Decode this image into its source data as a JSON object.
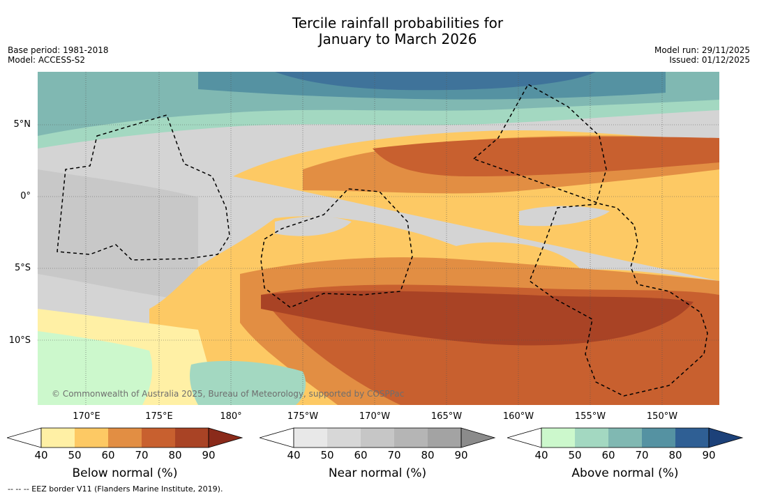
{
  "title_line1": "Tercile rainfall probabilities for",
  "title_line2": "January to March 2026",
  "base_period": "Base period: 1981-2018",
  "model": "Model: ACCESS-S2",
  "model_run": "Model run: 29/11/2025",
  "issued": "Issued: 01/12/2025",
  "lat_labels": [
    "5°N",
    "0°",
    "5°S",
    "10°S"
  ],
  "lon_labels": [
    "170°E",
    "175°E",
    "180°",
    "175°W",
    "170°W",
    "165°W",
    "160°W",
    "155°W",
    "150°W"
  ],
  "copyright": "© Commonwealth of Australia 2025, Bureau of Meteorology, supported by COSPPac",
  "colorbars": [
    {
      "label": "Below normal (%)",
      "ticks": [
        "40",
        "50",
        "60",
        "70",
        "80",
        "90"
      ],
      "colors": [
        "#fff0a5",
        "#fdc964",
        "#e28e43",
        "#c8602f",
        "#a94325",
        "#8a2a1a"
      ]
    },
    {
      "label": "Near normal (%)",
      "ticks": [
        "40",
        "50",
        "60",
        "70",
        "80",
        "90"
      ],
      "colors": [
        "#e8e8e8",
        "#d7d7d7",
        "#c6c6c6",
        "#b5b5b5",
        "#a3a3a3",
        "#8b8b8b"
      ]
    },
    {
      "label": "Above normal (%)",
      "ticks": [
        "40",
        "50",
        "60",
        "70",
        "80",
        "90"
      ],
      "colors": [
        "#ccf8cc",
        "#a3d8c1",
        "#80b8b2",
        "#5592a2",
        "#2f5f94",
        "#1c4179"
      ]
    }
  ],
  "footer": "--  --  -- EEZ border V11 (Flanders Marine Institute, 2019)."
}
